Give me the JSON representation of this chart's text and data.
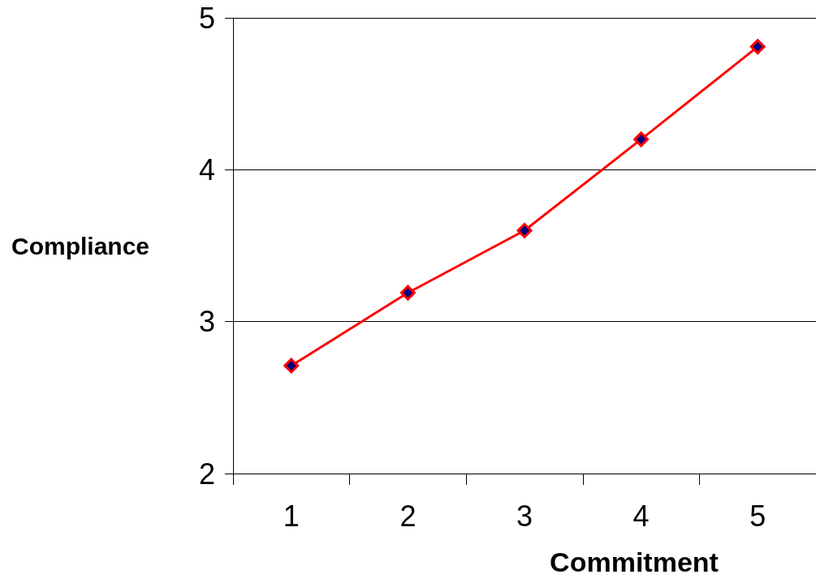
{
  "chart_data": {
    "type": "line",
    "xlabel": "Commitment",
    "ylabel": "Compliance",
    "categories": [
      "1",
      "2",
      "3",
      "4",
      "5"
    ],
    "series": [
      {
        "color": "#ff0000",
        "values": [
          2.71,
          3.19,
          3.6,
          4.2,
          4.81
        ]
      }
    ],
    "ylim": [
      2,
      5
    ],
    "yticks": [
      2,
      3,
      4,
      5
    ],
    "grid": "y",
    "marker": "diamond",
    "line_style": "solid"
  }
}
